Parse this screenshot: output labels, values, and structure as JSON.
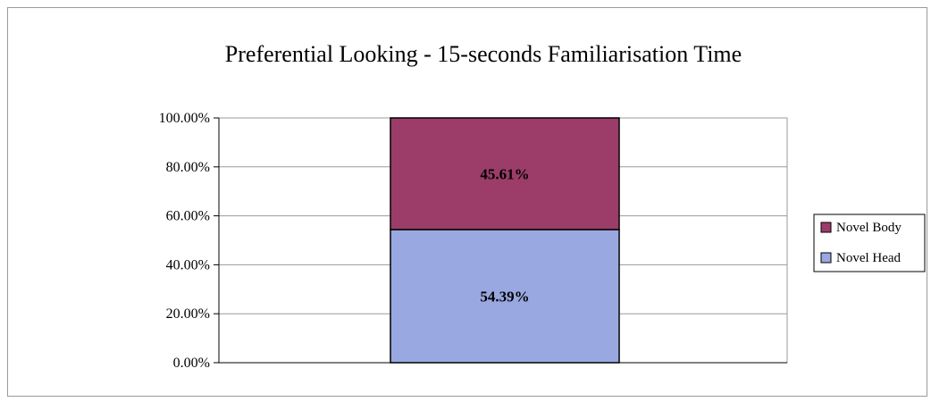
{
  "chart_data": {
    "type": "bar",
    "stacked": true,
    "title": "Preferential Looking - 15-seconds Familiarisation Time",
    "xlabel": "",
    "ylabel": "",
    "ylim": [
      0,
      1
    ],
    "yticks": [
      0,
      0.2,
      0.4,
      0.6,
      0.8,
      1.0
    ],
    "ytick_labels": [
      "0.00%",
      "20.00%",
      "40.00%",
      "60.00%",
      "80.00%",
      "100.00%"
    ],
    "categories": [
      ""
    ],
    "series": [
      {
        "name": "Novel Head",
        "values": [
          0.5439
        ],
        "label": "54.39%",
        "color": "#99a8e0"
      },
      {
        "name": "Novel Body",
        "values": [
          0.4561
        ],
        "label": "45.61%",
        "color": "#9b3d68"
      }
    ],
    "legend_order": [
      "Novel Body",
      "Novel Head"
    ],
    "legend_position": "right",
    "grid": true
  }
}
